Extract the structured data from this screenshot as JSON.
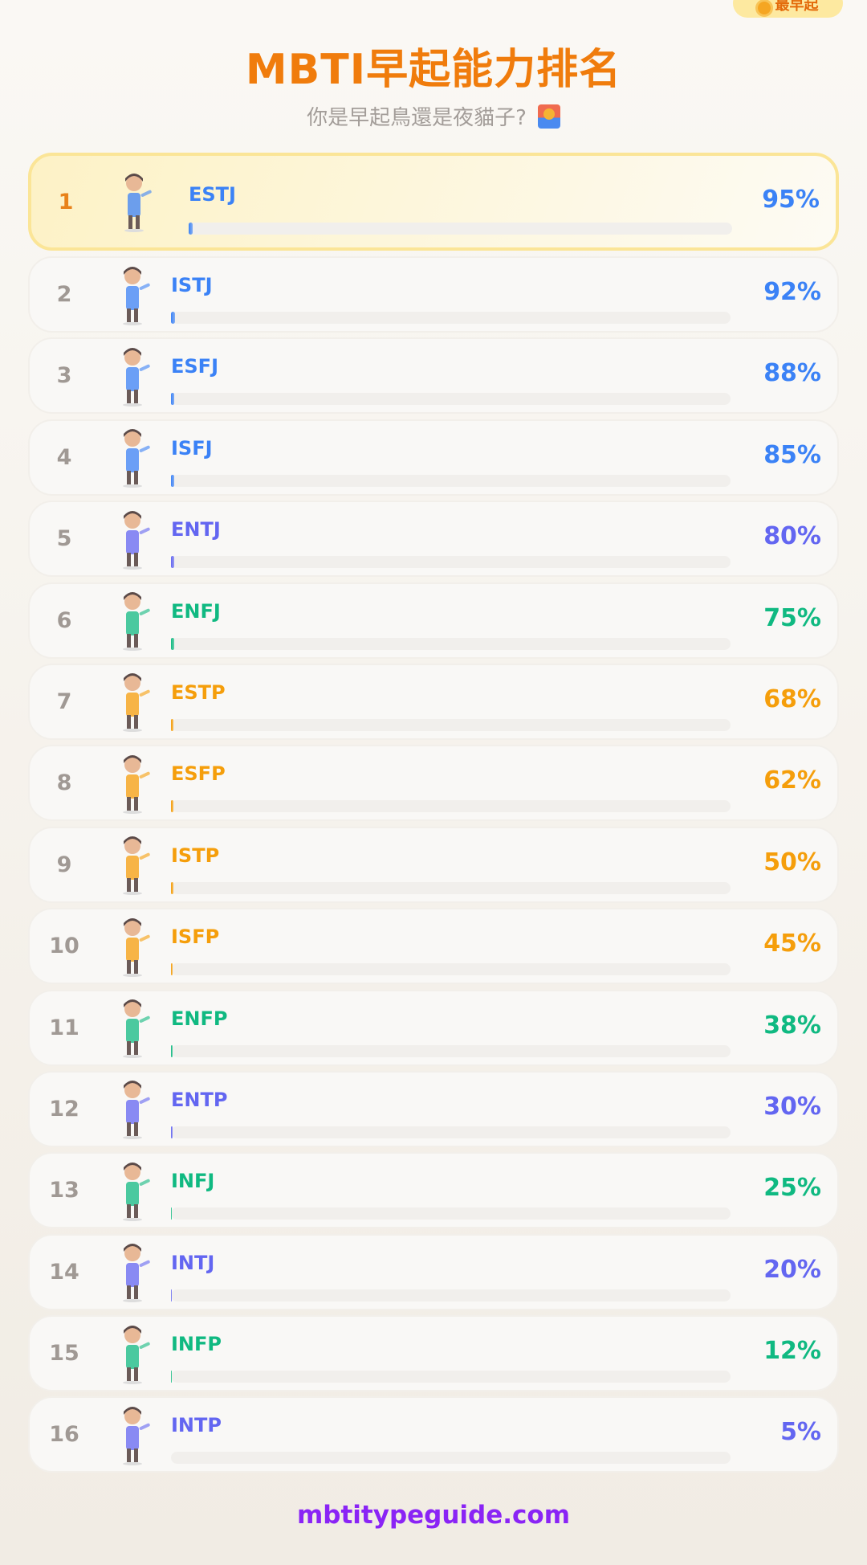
{
  "badge": {
    "label": "最早起",
    "icon": "sun-icon"
  },
  "header": {
    "title": "MBTI早起能力排名",
    "subtitle": "你是早起鳥還是夜貓子?",
    "subtitle_icon": "sunrise-icon"
  },
  "colors": {
    "SJ": "#3b82f6",
    "NT": "#6366f1",
    "NF": "#10b981",
    "SP": "#f59e0b",
    "title": "#f07c0c",
    "footer": "#8a24f5"
  },
  "ranking": [
    {
      "rank": "1",
      "type": "ESTJ",
      "percent": "95%",
      "value": 95,
      "group": "SJ"
    },
    {
      "rank": "2",
      "type": "ISTJ",
      "percent": "92%",
      "value": 92,
      "group": "SJ"
    },
    {
      "rank": "3",
      "type": "ESFJ",
      "percent": "88%",
      "value": 88,
      "group": "SJ"
    },
    {
      "rank": "4",
      "type": "ISFJ",
      "percent": "85%",
      "value": 85,
      "group": "SJ"
    },
    {
      "rank": "5",
      "type": "ENTJ",
      "percent": "80%",
      "value": 80,
      "group": "NT"
    },
    {
      "rank": "6",
      "type": "ENFJ",
      "percent": "75%",
      "value": 75,
      "group": "NF"
    },
    {
      "rank": "7",
      "type": "ESTP",
      "percent": "68%",
      "value": 68,
      "group": "SP"
    },
    {
      "rank": "8",
      "type": "ESFP",
      "percent": "62%",
      "value": 62,
      "group": "SP"
    },
    {
      "rank": "9",
      "type": "ISTP",
      "percent": "50%",
      "value": 50,
      "group": "SP"
    },
    {
      "rank": "10",
      "type": "ISFP",
      "percent": "45%",
      "value": 45,
      "group": "SP"
    },
    {
      "rank": "11",
      "type": "ENFP",
      "percent": "38%",
      "value": 38,
      "group": "NF"
    },
    {
      "rank": "12",
      "type": "ENTP",
      "percent": "30%",
      "value": 30,
      "group": "NT"
    },
    {
      "rank": "13",
      "type": "INFJ",
      "percent": "25%",
      "value": 25,
      "group": "NF"
    },
    {
      "rank": "14",
      "type": "INTJ",
      "percent": "20%",
      "value": 20,
      "group": "NT"
    },
    {
      "rank": "15",
      "type": "INFP",
      "percent": "12%",
      "value": 12,
      "group": "NF"
    },
    {
      "rank": "16",
      "type": "INTP",
      "percent": "5%",
      "value": 5,
      "group": "NT"
    }
  ],
  "footer": {
    "site": "mbtitypeguide.com"
  }
}
